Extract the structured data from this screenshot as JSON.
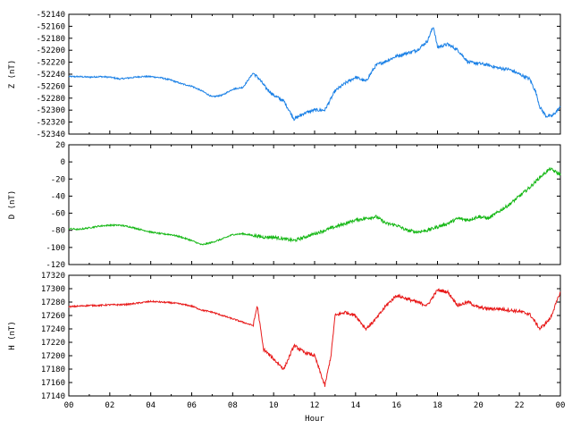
{
  "chart_data": [
    {
      "type": "line",
      "ylabel": "Z (nT)",
      "ylim": [
        -52340,
        -52140
      ],
      "yticks": [
        -52140,
        -52160,
        -52180,
        -52200,
        -52220,
        -52240,
        -52260,
        -52280,
        -52300,
        -52320,
        -52340
      ],
      "color": "#1a80e6",
      "series": [
        {
          "x": [
            0,
            0.5,
            1,
            1.5,
            2,
            2.5,
            3,
            3.5,
            4,
            4.5,
            5,
            5.5,
            6,
            6.5,
            7,
            7.5,
            8,
            8.5,
            9,
            9.3,
            9.6,
            10,
            10.5,
            11,
            11.5,
            12,
            12.5,
            13,
            13.5,
            14,
            14.5,
            15,
            15.5,
            16,
            16.5,
            17,
            17.5,
            17.8,
            18,
            18.5,
            19,
            19.5,
            20,
            20.5,
            21,
            21.5,
            22,
            22.5,
            22.8,
            23,
            23.3,
            23.6,
            24
          ],
          "values": [
            -52244,
            -52244,
            -52245,
            -52244,
            -52245,
            -52248,
            -52246,
            -52244,
            -52244,
            -52246,
            -52250,
            -52256,
            -52260,
            -52268,
            -52278,
            -52275,
            -52265,
            -52262,
            -52238,
            -52248,
            -52262,
            -52275,
            -52285,
            -52315,
            -52305,
            -52300,
            -52300,
            -52268,
            -52255,
            -52245,
            -52252,
            -52225,
            -52218,
            -52210,
            -52205,
            -52200,
            -52185,
            -52160,
            -52195,
            -52190,
            -52200,
            -52220,
            -52222,
            -52225,
            -52230,
            -52232,
            -52240,
            -52248,
            -52270,
            -52295,
            -52310,
            -52310,
            -52295
          ]
        }
      ]
    },
    {
      "type": "line",
      "ylabel": "D (nT)",
      "ylim": [
        -120,
        20
      ],
      "yticks": [
        20,
        0,
        -20,
        -40,
        -60,
        -80,
        -100,
        -120
      ],
      "color": "#17b817",
      "series": [
        {
          "x": [
            0,
            0.5,
            1,
            1.5,
            2,
            2.5,
            3,
            3.5,
            4,
            4.5,
            5,
            5.5,
            6,
            6.5,
            7,
            7.5,
            8,
            8.5,
            9,
            9.5,
            10,
            10.5,
            11,
            11.5,
            12,
            12.5,
            13,
            13.5,
            14,
            14.5,
            15,
            15.5,
            16,
            16.5,
            17,
            17.5,
            18,
            18.5,
            19,
            19.5,
            20,
            20.5,
            21,
            21.5,
            22,
            22.5,
            23,
            23.5,
            24
          ],
          "values": [
            -78,
            -79,
            -77,
            -75,
            -74,
            -74,
            -76,
            -79,
            -82,
            -84,
            -85,
            -88,
            -92,
            -97,
            -94,
            -90,
            -85,
            -84,
            -86,
            -88,
            -88,
            -90,
            -92,
            -88,
            -84,
            -80,
            -76,
            -72,
            -68,
            -66,
            -64,
            -72,
            -74,
            -80,
            -82,
            -80,
            -76,
            -72,
            -66,
            -68,
            -64,
            -66,
            -58,
            -50,
            -40,
            -30,
            -18,
            -8,
            -15
          ]
        }
      ]
    },
    {
      "type": "line",
      "ylabel": "H (nT)",
      "xlabel": "Hour",
      "ylim": [
        17140,
        17320
      ],
      "yticks": [
        17320,
        17300,
        17280,
        17260,
        17240,
        17220,
        17200,
        17180,
        17160,
        17140
      ],
      "xticks": [
        "00",
        "02",
        "04",
        "06",
        "08",
        "10",
        "12",
        "14",
        "16",
        "18",
        "20",
        "22",
        "00"
      ],
      "color": "#e81a1a",
      "series": [
        {
          "x": [
            0,
            0.5,
            1,
            1.5,
            2,
            2.5,
            3,
            3.5,
            4,
            4.5,
            5,
            5.5,
            6,
            6.5,
            7,
            7.5,
            8,
            8.5,
            9,
            9.2,
            9.5,
            10,
            10.5,
            11,
            11.5,
            12,
            12.5,
            12.8,
            13,
            13.5,
            14,
            14.5,
            15,
            15.5,
            16,
            16.5,
            17,
            17.5,
            18,
            18.5,
            19,
            19.5,
            20,
            20.5,
            21,
            21.5,
            22,
            22.5,
            23,
            23.5,
            24
          ],
          "values": [
            17273,
            17274,
            17275,
            17275,
            17276,
            17276,
            17277,
            17279,
            17281,
            17280,
            17279,
            17277,
            17274,
            17268,
            17265,
            17260,
            17255,
            17250,
            17245,
            17275,
            17210,
            17195,
            17180,
            17215,
            17205,
            17200,
            17155,
            17200,
            17260,
            17265,
            17260,
            17240,
            17255,
            17275,
            17290,
            17285,
            17280,
            17275,
            17298,
            17295,
            17275,
            17280,
            17272,
            17270,
            17270,
            17268,
            17266,
            17262,
            17240,
            17255,
            17295
          ]
        }
      ]
    }
  ]
}
